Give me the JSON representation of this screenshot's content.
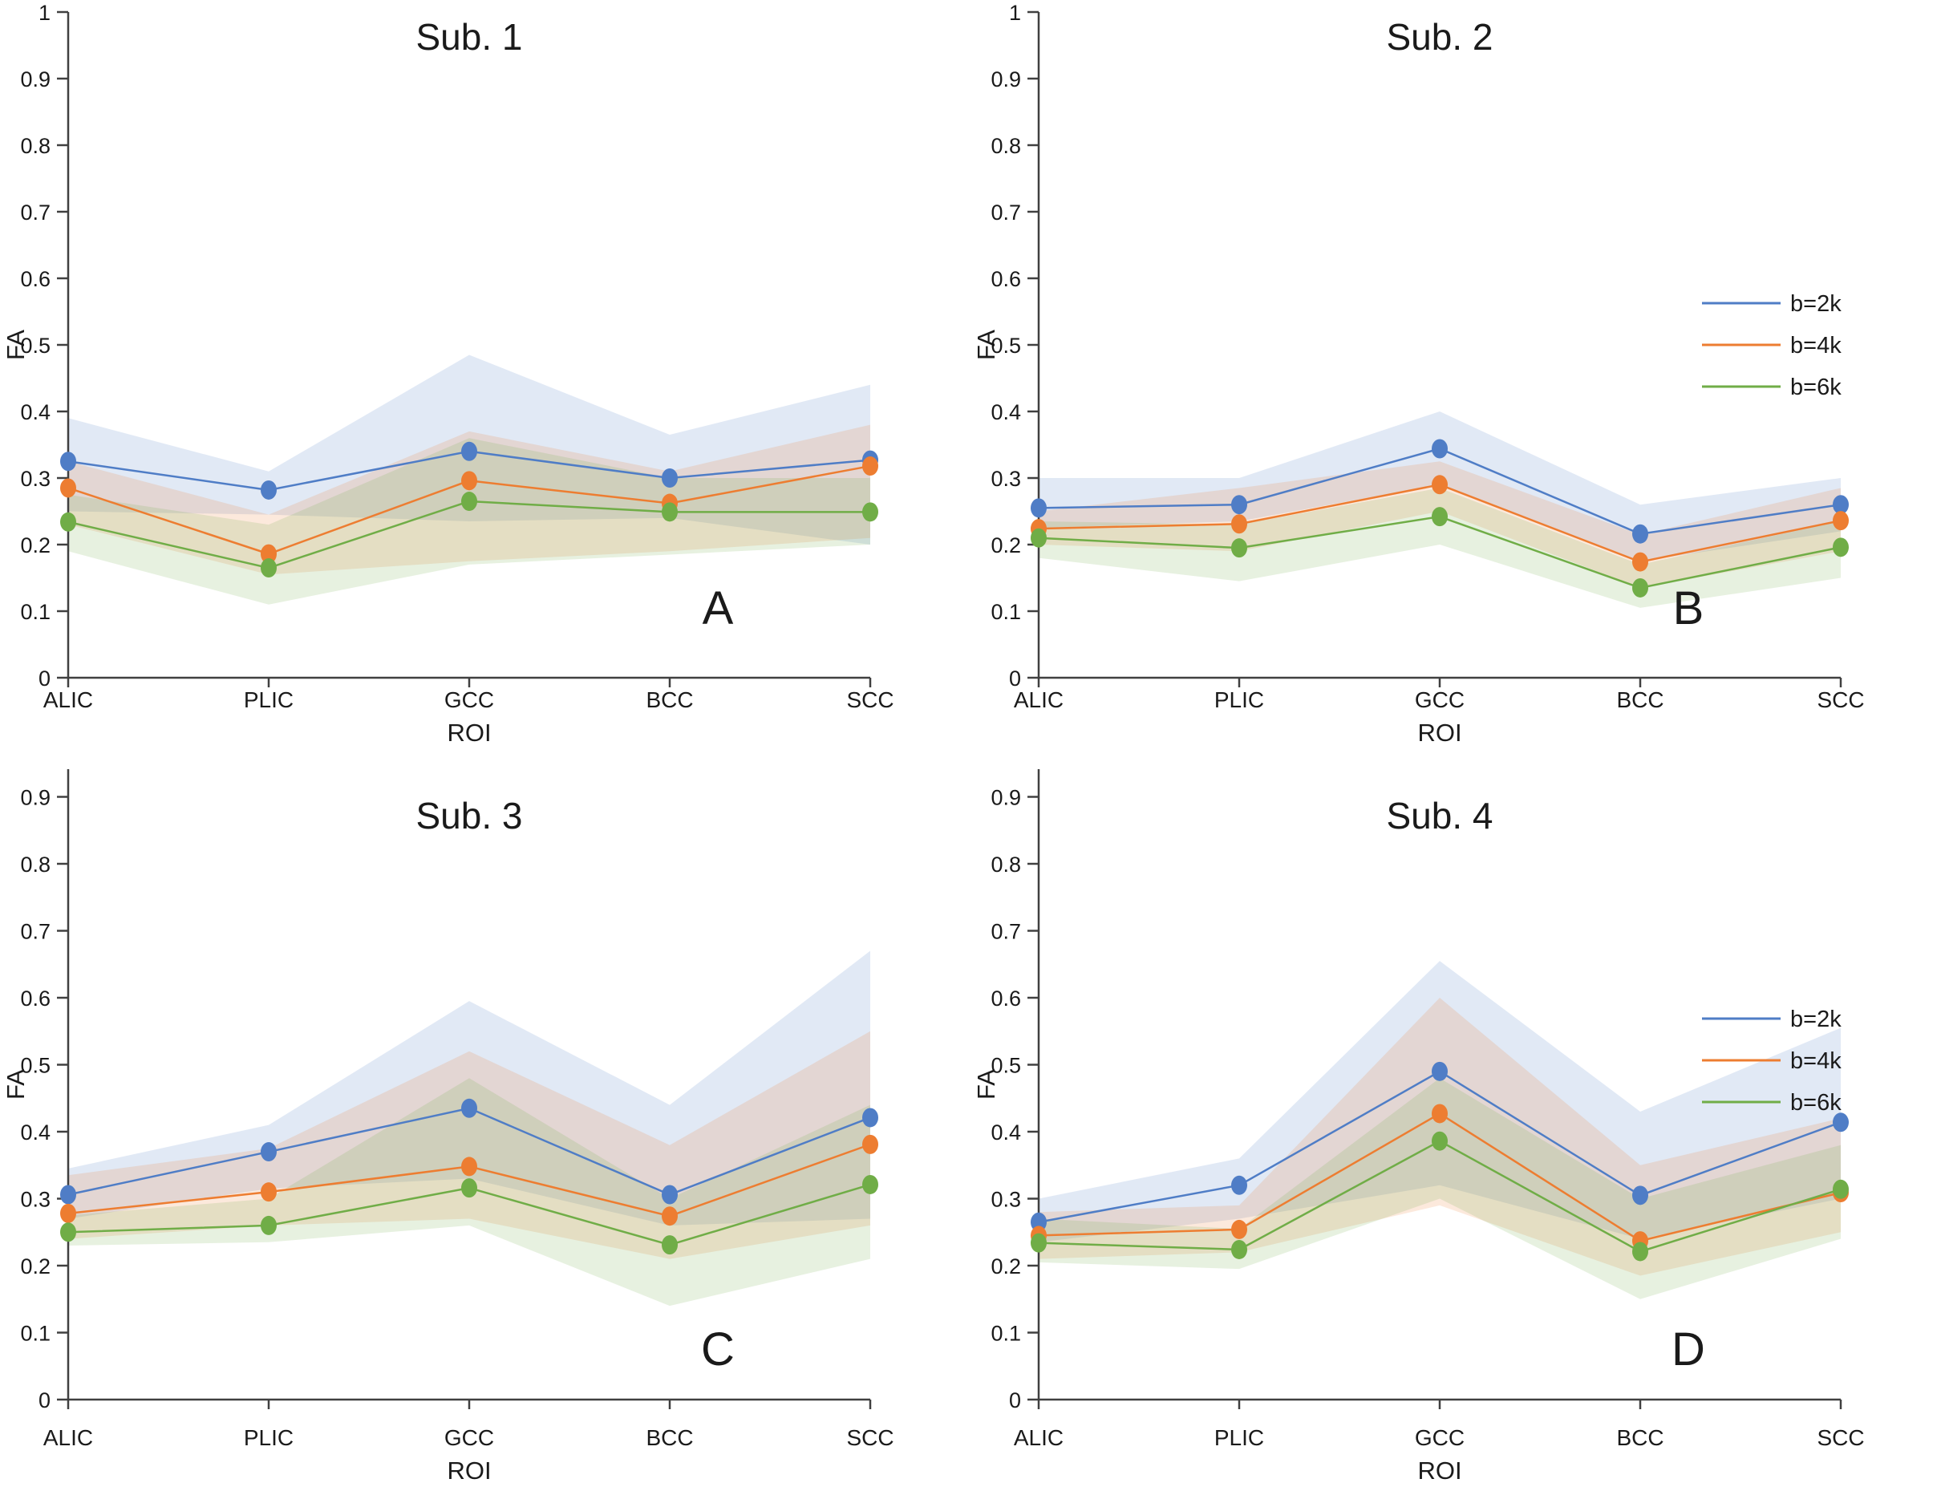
{
  "figure": {
    "background": "#ffffff",
    "axis_color": "#404040",
    "text_color": "#1a1a1a"
  },
  "legend": {
    "entries": [
      {
        "label": "b=2k",
        "color": "#4F7DC6"
      },
      {
        "label": "b=4k",
        "color": "#ED7D31"
      },
      {
        "label": "b=6k",
        "color": "#70AD47"
      }
    ]
  },
  "chart_data": [
    {
      "type": "line",
      "panel_label": "A",
      "title": "Sub. 1",
      "xlabel": "ROI",
      "ylabel": "FA",
      "categories": [
        "ALIC",
        "PLIC",
        "GCC",
        "BCC",
        "SCC"
      ],
      "ylim": [
        0,
        1
      ],
      "yticks": [
        "0",
        "0.1",
        "0.2",
        "0.3",
        "0.4",
        "0.5",
        "0.6",
        "0.7",
        "0.8",
        "0.9",
        "1"
      ],
      "grid": false,
      "legend_position": null,
      "series": [
        {
          "name": "b=2k",
          "color": "#4F7DC6",
          "values": [
            0.325,
            0.282,
            0.34,
            0.3,
            0.327
          ],
          "band_lower": [
            0.25,
            0.245,
            0.235,
            0.24,
            0.2
          ],
          "band_upper": [
            0.39,
            0.31,
            0.485,
            0.365,
            0.44
          ]
        },
        {
          "name": "b=4k",
          "color": "#ED7D31",
          "values": [
            0.285,
            0.186,
            0.296,
            0.262,
            0.318
          ],
          "band_lower": [
            0.23,
            0.155,
            0.175,
            0.19,
            0.21
          ],
          "band_upper": [
            0.325,
            0.245,
            0.37,
            0.31,
            0.38
          ]
        },
        {
          "name": "b=6k",
          "color": "#70AD47",
          "values": [
            0.234,
            0.165,
            0.265,
            0.249,
            0.249
          ],
          "band_lower": [
            0.19,
            0.11,
            0.17,
            0.185,
            0.2
          ],
          "band_upper": [
            0.275,
            0.23,
            0.36,
            0.3,
            0.3
          ]
        }
      ]
    },
    {
      "type": "line",
      "panel_label": "B",
      "title": "Sub. 2",
      "xlabel": "ROI",
      "ylabel": "FA",
      "categories": [
        "ALIC",
        "PLIC",
        "GCC",
        "BCC",
        "SCC"
      ],
      "ylim": [
        0,
        1
      ],
      "yticks": [
        "0",
        "0.1",
        "0.2",
        "0.3",
        "0.4",
        "0.5",
        "0.6",
        "0.7",
        "0.8",
        "0.9",
        "1"
      ],
      "grid": false,
      "legend_position": "right",
      "series": [
        {
          "name": "b=2k",
          "color": "#4F7DC6",
          "values": [
            0.255,
            0.26,
            0.344,
            0.216,
            0.26
          ],
          "band_lower": [
            0.225,
            0.235,
            0.29,
            0.175,
            0.22
          ],
          "band_upper": [
            0.3,
            0.3,
            0.4,
            0.26,
            0.3
          ]
        },
        {
          "name": "b=4k",
          "color": "#ED7D31",
          "values": [
            0.224,
            0.231,
            0.29,
            0.174,
            0.236
          ],
          "band_lower": [
            0.2,
            0.19,
            0.25,
            0.135,
            0.19
          ],
          "band_upper": [
            0.25,
            0.285,
            0.325,
            0.215,
            0.285
          ]
        },
        {
          "name": "b=6k",
          "color": "#70AD47",
          "values": [
            0.21,
            0.195,
            0.242,
            0.135,
            0.196
          ],
          "band_lower": [
            0.18,
            0.145,
            0.2,
            0.105,
            0.15
          ],
          "band_upper": [
            0.235,
            0.23,
            0.285,
            0.17,
            0.235
          ]
        }
      ]
    },
    {
      "type": "line",
      "panel_label": "C",
      "title": "Sub. 3",
      "xlabel": "ROI",
      "ylabel": "FA",
      "categories": [
        "ALIC",
        "PLIC",
        "GCC",
        "BCC",
        "SCC"
      ],
      "ylim": [
        0,
        0.94
      ],
      "yticks": [
        "0",
        "0.1",
        "0.2",
        "0.3",
        "0.4",
        "0.5",
        "0.6",
        "0.7",
        "0.8",
        "0.9"
      ],
      "grid": false,
      "legend_position": null,
      "series": [
        {
          "name": "b=2k",
          "color": "#4F7DC6",
          "values": [
            0.306,
            0.37,
            0.435,
            0.306,
            0.421
          ],
          "band_lower": [
            0.27,
            0.315,
            0.33,
            0.26,
            0.27
          ],
          "band_upper": [
            0.345,
            0.41,
            0.595,
            0.44,
            0.67
          ]
        },
        {
          "name": "b=4k",
          "color": "#ED7D31",
          "values": [
            0.278,
            0.31,
            0.348,
            0.274,
            0.381
          ],
          "band_lower": [
            0.24,
            0.26,
            0.27,
            0.21,
            0.26
          ],
          "band_upper": [
            0.335,
            0.375,
            0.52,
            0.38,
            0.55
          ]
        },
        {
          "name": "b=6k",
          "color": "#70AD47",
          "values": [
            0.25,
            0.26,
            0.316,
            0.231,
            0.321
          ],
          "band_lower": [
            0.23,
            0.235,
            0.26,
            0.14,
            0.21
          ],
          "band_upper": [
            0.275,
            0.3,
            0.48,
            0.3,
            0.44
          ]
        }
      ]
    },
    {
      "type": "line",
      "panel_label": "D",
      "title": "Sub. 4",
      "xlabel": "ROI",
      "ylabel": "FA",
      "categories": [
        "ALIC",
        "PLIC",
        "GCC",
        "BCC",
        "SCC"
      ],
      "ylim": [
        0,
        0.94
      ],
      "yticks": [
        "0",
        "0.1",
        "0.2",
        "0.3",
        "0.4",
        "0.5",
        "0.6",
        "0.7",
        "0.8",
        "0.9"
      ],
      "grid": false,
      "legend_position": "right",
      "series": [
        {
          "name": "b=2k",
          "color": "#4F7DC6",
          "values": [
            0.265,
            0.32,
            0.49,
            0.305,
            0.414
          ],
          "band_lower": [
            0.235,
            0.27,
            0.32,
            0.24,
            0.3
          ],
          "band_upper": [
            0.3,
            0.36,
            0.655,
            0.43,
            0.555
          ]
        },
        {
          "name": "b=4k",
          "color": "#ED7D31",
          "values": [
            0.245,
            0.254,
            0.427,
            0.237,
            0.309
          ],
          "band_lower": [
            0.21,
            0.22,
            0.29,
            0.185,
            0.25
          ],
          "band_upper": [
            0.28,
            0.29,
            0.6,
            0.35,
            0.42
          ]
        },
        {
          "name": "b=6k",
          "color": "#70AD47",
          "values": [
            0.234,
            0.224,
            0.386,
            0.221,
            0.314
          ],
          "band_lower": [
            0.205,
            0.195,
            0.3,
            0.15,
            0.24
          ],
          "band_upper": [
            0.27,
            0.255,
            0.48,
            0.3,
            0.38
          ]
        }
      ]
    }
  ]
}
